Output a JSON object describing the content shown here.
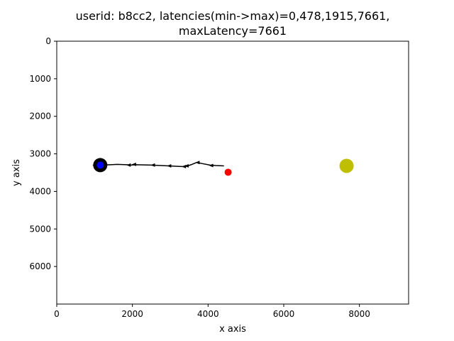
{
  "chart_data": {
    "type": "scatter",
    "title_lines": [
      "userid: b8cc2, latencies(min->max)=0,478,1915,7661,",
      "maxLatency=7661"
    ],
    "xlabel": "x axis",
    "ylabel": "y axis",
    "xlim": [
      0,
      9300
    ],
    "ylim": [
      7000,
      0
    ],
    "y_inverted": true,
    "xticks": [
      0,
      2000,
      4000,
      6000,
      8000
    ],
    "yticks": [
      0,
      1000,
      2000,
      3000,
      4000,
      5000,
      6000
    ],
    "grid": false,
    "trajectory": {
      "color": "#000000",
      "points": [
        [
          4420,
          3320
        ],
        [
          4200,
          3310
        ],
        [
          4050,
          3300
        ],
        [
          3850,
          3260
        ],
        [
          3700,
          3230
        ],
        [
          3550,
          3290
        ],
        [
          3430,
          3330
        ],
        [
          3350,
          3340
        ],
        [
          2950,
          3320
        ],
        [
          2500,
          3300
        ],
        [
          2100,
          3290
        ],
        [
          1950,
          3300
        ],
        [
          1850,
          3290
        ],
        [
          1600,
          3280
        ],
        [
          1420,
          3290
        ],
        [
          1150,
          3300
        ],
        [
          1000,
          3300
        ]
      ],
      "arrow_points": [
        [
          4080,
          3310
        ],
        [
          3720,
          3230
        ],
        [
          3430,
          3320
        ],
        [
          3360,
          3340
        ],
        [
          2970,
          3320
        ],
        [
          2540,
          3300
        ],
        [
          2040,
          3280
        ],
        [
          1900,
          3300
        ],
        [
          1000,
          3300
        ]
      ]
    },
    "markers": [
      {
        "name": "start",
        "x": 1150,
        "y": 3300,
        "color": "#000000",
        "size": "large"
      },
      {
        "name": "first",
        "x": 1150,
        "y": 3300,
        "color": "#0000ff",
        "size": "small"
      },
      {
        "name": "last",
        "x": 4530,
        "y": 3490,
        "color": "#ff0000",
        "size": "small"
      },
      {
        "name": "target",
        "x": 7661,
        "y": 3320,
        "color": "#bfbf00",
        "size": "large"
      }
    ]
  }
}
